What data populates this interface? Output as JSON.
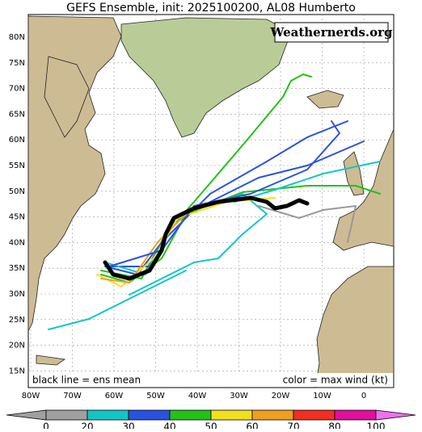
{
  "title": "GEFS Ensemble, init: 2025100200, AL08 Humberto",
  "logo": "Weathernerds.org",
  "annotations": [
    "black line = ens mean",
    "color = max wind (kt)"
  ],
  "lat_labels": [
    "80N",
    "75N",
    "70N",
    "65N",
    "60N",
    "55N",
    "50N",
    "45N",
    "40N",
    "35N",
    "30N",
    "25N",
    "20N",
    "15N"
  ],
  "lon_labels": [
    "80W",
    "70W",
    "60W",
    "50W",
    "40W",
    "30W",
    "20W",
    "10W",
    "0"
  ],
  "colorbar": {
    "ticks": [
      0,
      20,
      30,
      40,
      50,
      60,
      70,
      80,
      100
    ],
    "colors": [
      "#a0a0a0",
      "#a0a0a0",
      "#12c6c6",
      "#2a52e0",
      "#22c21a",
      "#f0e020",
      "#f0a020",
      "#f03020",
      "#e0109a",
      "#f070f0"
    ]
  }
}
